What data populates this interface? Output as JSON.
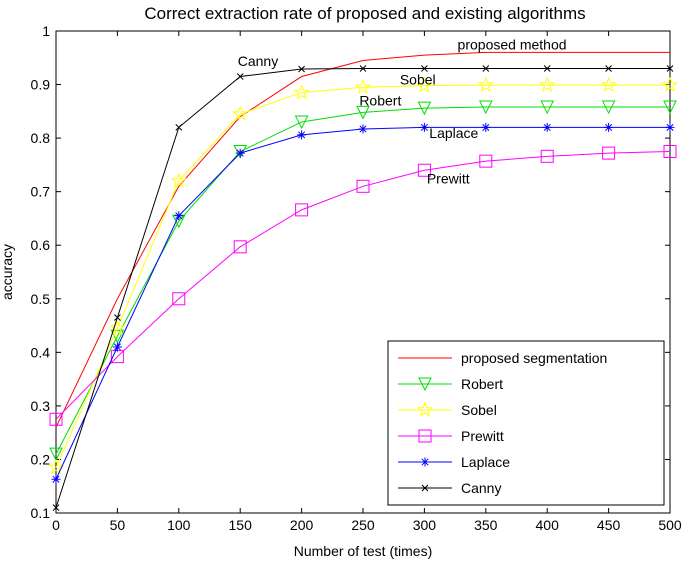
{
  "chart_data": {
    "type": "line",
    "title": "Correct extraction rate of proposed and existing algorithms",
    "xlabel": "Number of test (times)",
    "ylabel": "accuracy",
    "xlim": [
      0,
      500
    ],
    "ylim": [
      0.1,
      1
    ],
    "xticks": [
      "0",
      "50",
      "100",
      "150",
      "200",
      "250",
      "300",
      "350",
      "400",
      "450",
      "500"
    ],
    "yticks": [
      "0.1",
      "0.2",
      "0.3",
      "0.4",
      "0.5",
      "0.6",
      "0.7",
      "0.8",
      "0.9",
      "1"
    ],
    "grid": false,
    "legend_position": "bottom-right",
    "x": [
      0,
      50,
      100,
      150,
      200,
      250,
      300,
      350,
      400,
      450,
      500
    ],
    "series": [
      {
        "name": "proposed segmentation",
        "color": "#ff0000",
        "marker": "none",
        "values": [
          0.26,
          0.5,
          0.71,
          0.84,
          0.915,
          0.945,
          0.955,
          0.96,
          0.96,
          0.96,
          0.96
        ]
      },
      {
        "name": "Robert",
        "color": "#00dd00",
        "marker": "triangle-down",
        "values": [
          0.21,
          0.43,
          0.645,
          0.775,
          0.83,
          0.848,
          0.856,
          0.858,
          0.858,
          0.858,
          0.858
        ]
      },
      {
        "name": "Sobel",
        "color": "#ffff00",
        "marker": "star",
        "values": [
          0.185,
          0.445,
          0.72,
          0.845,
          0.885,
          0.895,
          0.898,
          0.899,
          0.899,
          0.899,
          0.899
        ]
      },
      {
        "name": "Prewitt",
        "color": "#ff00ff",
        "marker": "square",
        "values": [
          0.275,
          0.392,
          0.5,
          0.597,
          0.666,
          0.71,
          0.74,
          0.757,
          0.766,
          0.772,
          0.775
        ]
      },
      {
        "name": "Laplace",
        "color": "#0000ff",
        "marker": "asterisk",
        "values": [
          0.163,
          0.41,
          0.655,
          0.772,
          0.806,
          0.817,
          0.82,
          0.82,
          0.82,
          0.82,
          0.82
        ]
      },
      {
        "name": "Canny",
        "color": "#000000",
        "marker": "x",
        "values": [
          0.11,
          0.465,
          0.82,
          0.915,
          0.929,
          0.93,
          0.93,
          0.93,
          0.93,
          0.93,
          0.93
        ]
      }
    ],
    "annotations": [
      {
        "text": "Canny",
        "x": 148,
        "y": 0.935
      },
      {
        "text": "proposed method",
        "x": 327,
        "y": 0.965
      },
      {
        "text": "Sobel",
        "x": 280,
        "y": 0.9
      },
      {
        "text": "Robert",
        "x": 247,
        "y": 0.861
      },
      {
        "text": "Laplace",
        "x": 304,
        "y": 0.8
      },
      {
        "text": "Prewitt",
        "x": 302,
        "y": 0.715
      }
    ]
  }
}
